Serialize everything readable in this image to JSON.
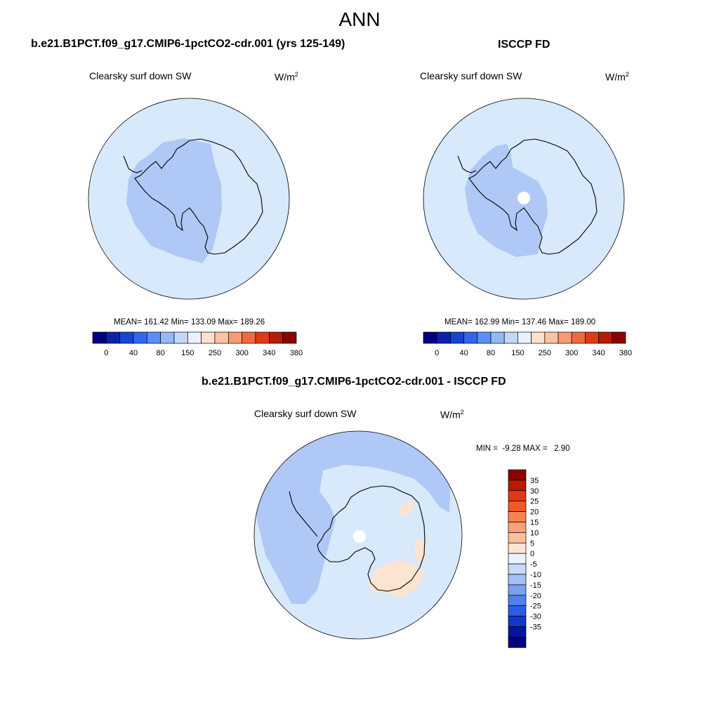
{
  "figure": {
    "title": "ANN",
    "units_base": "W/m",
    "units_exp": "2"
  },
  "colors": {
    "ocean_fill": "#d7e9fb",
    "land_bias_fill": "#b0c8f6",
    "warm_bias_fill": "#fde4d0",
    "coastline": "#000000",
    "missing": "#ffffff"
  },
  "chart_data": [
    {
      "type": "heatmap",
      "projection": "south-polar-stereographic",
      "title": "b.e21.B1PCT.f09_g17.CMIP6-1pctCO2-cdr.001 (yrs 125-149)",
      "variable": "Clearsky surf down SW",
      "stats_text": "MEAN= 161.42  Min= 133.09  Max= 189.26",
      "stats": {
        "mean": 161.42,
        "min": 133.09,
        "max": 189.26
      },
      "colorbar": {
        "orientation": "horizontal",
        "colors": [
          "#00007f",
          "#0b20b0",
          "#1744d8",
          "#3366f0",
          "#5b8ef6",
          "#94b8f5",
          "#c2d6f8",
          "#e9f1fd",
          "#fde0cd",
          "#fbc2a4",
          "#f79b74",
          "#f06a40",
          "#e03a12",
          "#b81a04",
          "#8b0000"
        ],
        "tick_labels": [
          "0",
          "40",
          "80",
          "150",
          "250",
          "300",
          "340",
          "380"
        ]
      }
    },
    {
      "type": "heatmap",
      "projection": "south-polar-stereographic",
      "title": "ISCCP FD",
      "variable": "Clearsky surf down SW",
      "stats_text": "MEAN= 162.99  Min= 137.46  Max= 189.00",
      "stats": {
        "mean": 162.99,
        "min": 137.46,
        "max": 189.0
      },
      "colorbar": {
        "orientation": "horizontal",
        "colors": [
          "#00007f",
          "#0b20b0",
          "#1744d8",
          "#3366f0",
          "#5b8ef6",
          "#94b8f5",
          "#c2d6f8",
          "#e9f1fd",
          "#fde0cd",
          "#fbc2a4",
          "#f79b74",
          "#f06a40",
          "#e03a12",
          "#b81a04",
          "#8b0000"
        ],
        "tick_labels": [
          "0",
          "40",
          "80",
          "150",
          "250",
          "300",
          "340",
          "380"
        ]
      }
    },
    {
      "type": "heatmap",
      "projection": "south-polar-stereographic",
      "title": "b.e21.B1PCT.f09_g17.CMIP6-1pctCO2-cdr.001 - ISCCP FD",
      "variable": "Clearsky surf down SW",
      "stats_text": "MIN =  -9.28 MAX =   2.90",
      "stats": {
        "min": -9.28,
        "max": 2.9
      },
      "colorbar": {
        "orientation": "vertical",
        "colors": [
          "#8b0000",
          "#b81a04",
          "#e03a12",
          "#f05a24",
          "#f7834f",
          "#fba07a",
          "#fdbf9f",
          "#fde4d0",
          "#eaf2fd",
          "#c7daf8",
          "#a2c0f4",
          "#7aa0f0",
          "#5080ee",
          "#2c5cea",
          "#1238c8",
          "#0016a0",
          "#00007f"
        ],
        "tick_labels": [
          "35",
          "30",
          "25",
          "20",
          "15",
          "10",
          "5",
          "0",
          "-5",
          "-10",
          "-15",
          "-20",
          "-25",
          "-30",
          "-35"
        ]
      }
    }
  ]
}
